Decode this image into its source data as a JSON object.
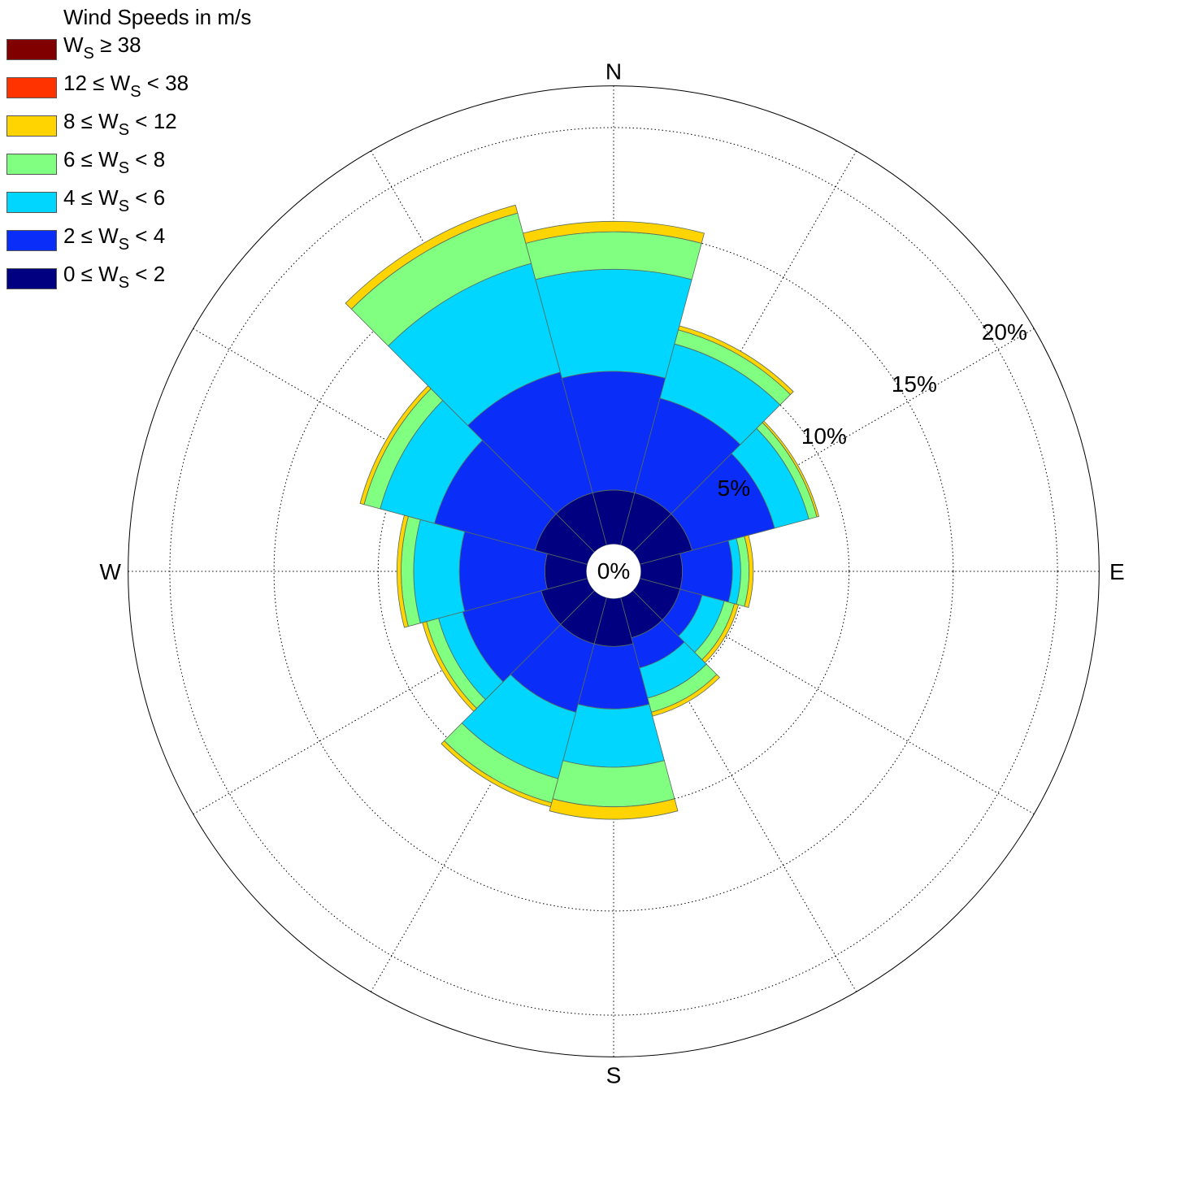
{
  "chart_data": {
    "type": "windrose",
    "legend_title": "Wind Speeds in m/s",
    "bins": [
      {
        "label_html": "0 &le; W<sub>S</sub> &lt; 2",
        "color": "#000080"
      },
      {
        "label_html": "2 &le; W<sub>S</sub> &lt; 4",
        "color": "#0a2df7"
      },
      {
        "label_html": "4 &le; W<sub>S</sub> &lt; 6",
        "color": "#00d6ff"
      },
      {
        "label_html": "6 &le; W<sub>S</sub> &lt; 8",
        "color": "#80ff80"
      },
      {
        "label_html": "8 &le; W<sub>S</sub> &lt; 12",
        "color": "#ffd400"
      },
      {
        "label_html": "12 &le; W<sub>S</sub> &lt; 38",
        "color": "#ff3300"
      },
      {
        "label_html": "W<sub>S</sub> &ge; 38",
        "color": "#800000"
      }
    ],
    "directions": [
      0,
      30,
      60,
      90,
      120,
      150,
      180,
      210,
      240,
      270,
      300,
      330
    ],
    "cumulative_percent": [
      [
        2.6,
        8.3,
        13.2,
        15.0,
        15.5,
        15.5,
        15.5
      ],
      [
        2.6,
        7.3,
        10.0,
        10.7,
        10.9,
        10.9,
        10.9
      ],
      [
        2.6,
        6.7,
        8.4,
        8.8,
        8.9,
        8.9,
        8.9
      ],
      [
        2.0,
        4.4,
        4.8,
        5.2,
        5.4,
        5.4,
        5.4
      ],
      [
        2.0,
        3.1,
        4.2,
        4.7,
        4.9,
        4.9,
        4.9
      ],
      [
        2.0,
        3.5,
        5.0,
        5.7,
        5.9,
        5.9,
        5.9
      ],
      [
        2.3,
        5.3,
        8.1,
        10.0,
        10.6,
        10.6,
        10.6
      ],
      [
        2.3,
        5.7,
        9.0,
        10.2,
        10.4,
        10.4,
        10.4
      ],
      [
        2.3,
        6.2,
        7.4,
        8.0,
        8.2,
        8.2,
        8.2
      ],
      [
        2.0,
        6.1,
        8.3,
        8.9,
        9.1,
        9.1,
        9.1
      ],
      [
        2.6,
        7.6,
        10.3,
        11.1,
        11.3,
        11.3,
        11.3
      ],
      [
        2.6,
        8.6,
        14.0,
        16.5,
        16.9,
        16.9,
        16.9
      ]
    ],
    "center_hole_percent": 1.3,
    "rlim": [
      0,
      22
    ],
    "rings_percent": [
      5,
      10,
      15,
      20
    ],
    "ring_labels": [
      "0%",
      "5%",
      "10%",
      "15%",
      "20%"
    ],
    "compass_labels": [
      "N",
      "E",
      "S",
      "W"
    ],
    "spoke_step_deg": 30,
    "grid": true
  }
}
